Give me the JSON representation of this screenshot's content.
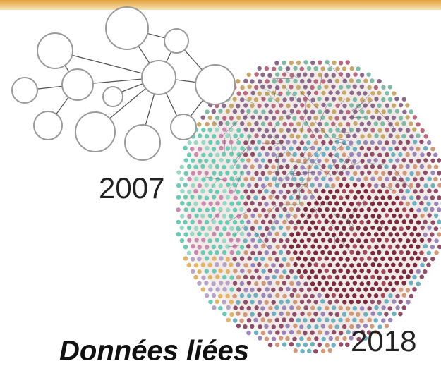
{
  "labels": {
    "year_start": "2007",
    "year_end": "2018",
    "caption": "Données liées"
  }
}
